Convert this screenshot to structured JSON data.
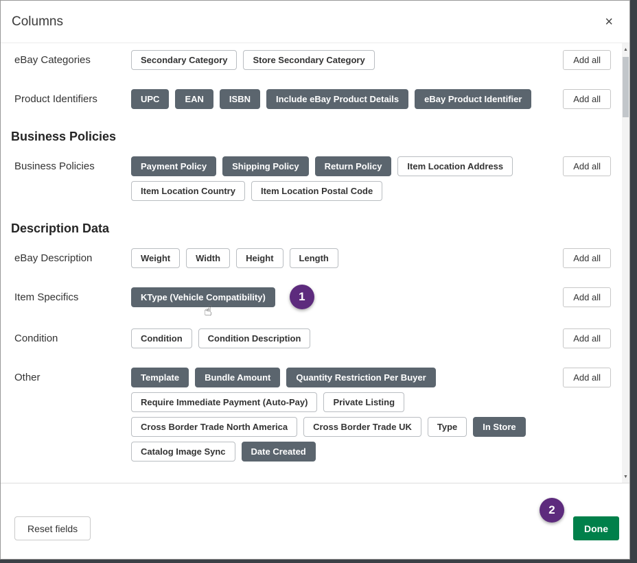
{
  "modal": {
    "title": "Columns",
    "close_glyph": "×"
  },
  "colors": {
    "chip_selected_bg": "#5b656e",
    "done_button_bg": "#00804a",
    "annotation_circle": "#5d2b7d"
  },
  "icons": {
    "cursor": "☝"
  },
  "annotations": {
    "step1": "1",
    "step2": "2"
  },
  "scrollbar": {
    "up_glyph": "▲",
    "down_glyph": "▼"
  },
  "body": {
    "items": [
      {
        "type": "row",
        "label": "eBay Categories",
        "add_all": "Add all",
        "chips": [
          {
            "label": "Secondary Category",
            "selected": false
          },
          {
            "label": "Store Secondary Category",
            "selected": false
          }
        ]
      },
      {
        "type": "row",
        "label": "Product Identifiers",
        "add_all": "Add all",
        "chips": [
          {
            "label": "UPC",
            "selected": true
          },
          {
            "label": "EAN",
            "selected": true
          },
          {
            "label": "ISBN",
            "selected": true
          },
          {
            "label": "Include eBay Product Details",
            "selected": true
          },
          {
            "label": "eBay Product Identifier",
            "selected": true
          }
        ]
      },
      {
        "type": "heading",
        "label": "Business Policies"
      },
      {
        "type": "row",
        "label": "Business Policies",
        "add_all": "Add all",
        "chips": [
          {
            "label": "Payment Policy",
            "selected": true
          },
          {
            "label": "Shipping Policy",
            "selected": true
          },
          {
            "label": "Return Policy",
            "selected": true
          },
          {
            "label": "Item Location Address",
            "selected": false
          },
          {
            "label": "Item Location Country",
            "selected": false
          },
          {
            "label": "Item Location Postal Code",
            "selected": false
          }
        ]
      },
      {
        "type": "heading",
        "label": "Description Data"
      },
      {
        "type": "row",
        "label": "eBay Description",
        "add_all": "Add all",
        "chips": [
          {
            "label": "Weight",
            "selected": false
          },
          {
            "label": "Width",
            "selected": false
          },
          {
            "label": "Height",
            "selected": false
          },
          {
            "label": "Length",
            "selected": false
          }
        ]
      },
      {
        "type": "row",
        "label": "Item Specifics",
        "add_all": "Add all",
        "chips": [
          {
            "label": "KType (Vehicle Compatibility)",
            "selected": true,
            "annotation": "1",
            "cursor": true
          }
        ]
      },
      {
        "type": "row",
        "label": "Condition",
        "add_all": "Add all",
        "chips": [
          {
            "label": "Condition",
            "selected": false
          },
          {
            "label": "Condition Description",
            "selected": false
          }
        ]
      },
      {
        "type": "row",
        "label": "Other",
        "add_all": "Add all",
        "chips": [
          {
            "label": "Template",
            "selected": true
          },
          {
            "label": "Bundle Amount",
            "selected": true
          },
          {
            "label": "Quantity Restriction Per Buyer",
            "selected": true
          },
          {
            "label": "Require Immediate Payment (Auto-Pay)",
            "selected": false
          },
          {
            "label": "Private Listing",
            "selected": false
          },
          {
            "label": "Cross Border Trade North America",
            "selected": false
          },
          {
            "label": "Cross Border Trade UK",
            "selected": false
          },
          {
            "label": "Type",
            "selected": false
          },
          {
            "label": "In Store",
            "selected": true
          },
          {
            "label": "Catalog Image Sync",
            "selected": false
          },
          {
            "label": "Date Created",
            "selected": true
          }
        ]
      }
    ]
  },
  "footer": {
    "reset_label": "Reset fields",
    "done_label": "Done"
  }
}
